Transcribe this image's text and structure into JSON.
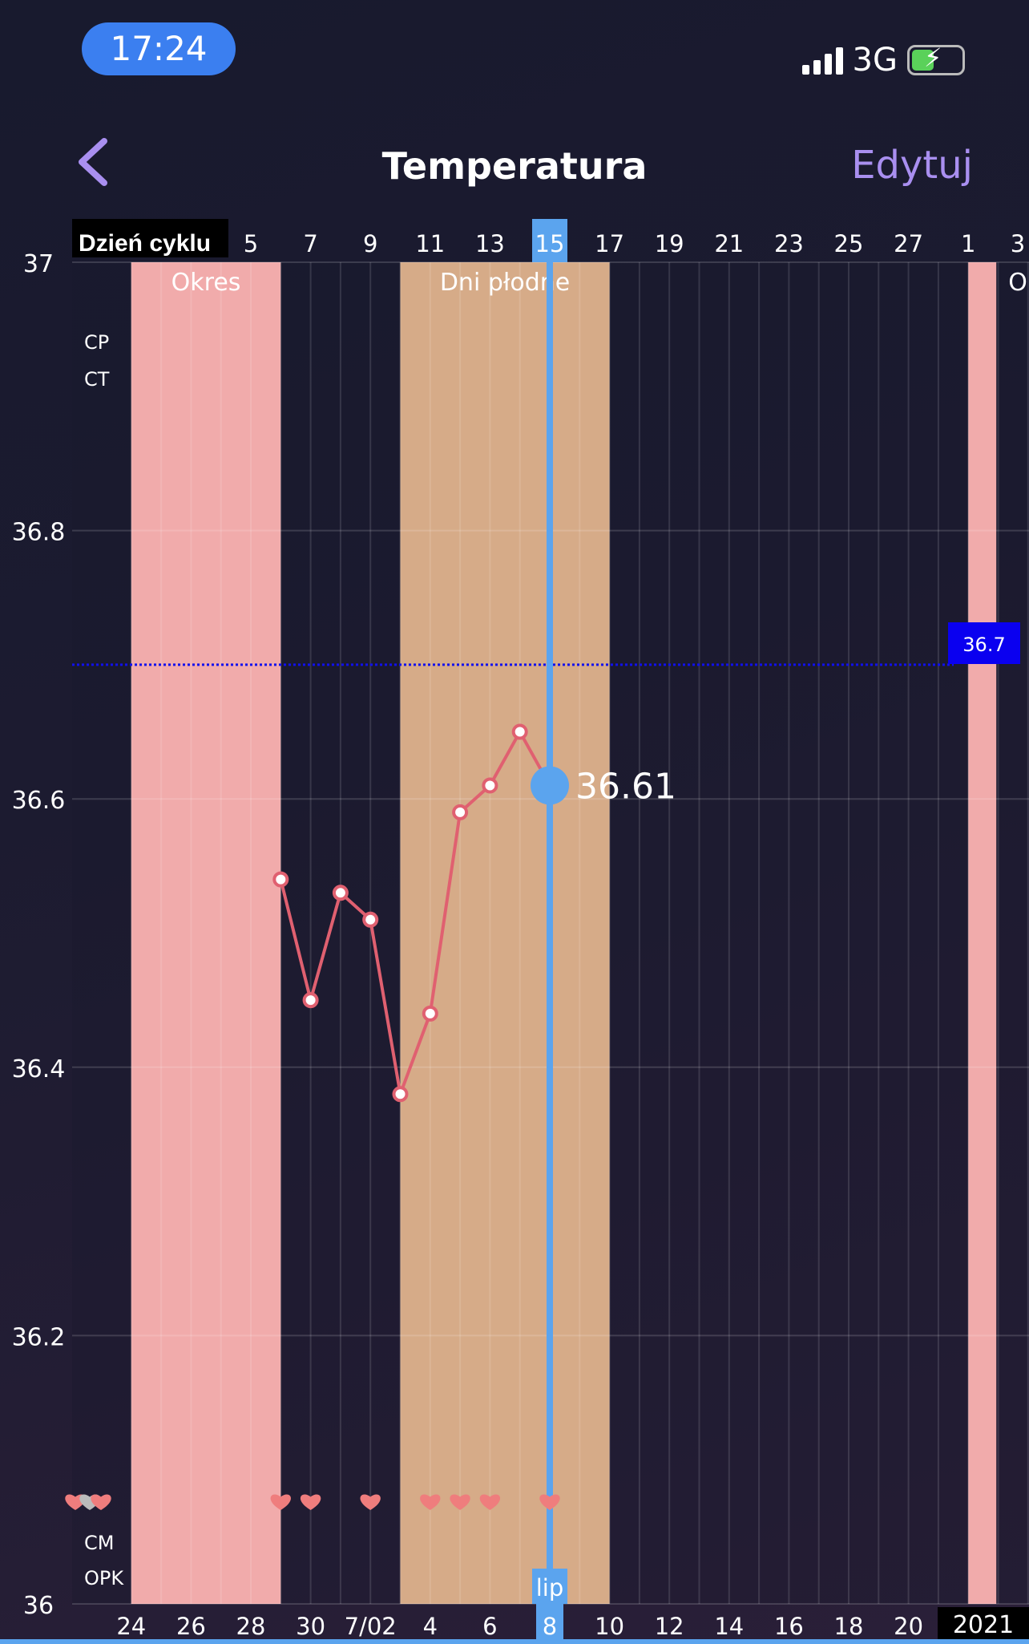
{
  "status_bar": {
    "time": "17:24",
    "network": "3G"
  },
  "header": {
    "title": "Temperatura",
    "edit_label": "Edytuj"
  },
  "chart_data": {
    "type": "line",
    "top_axis_label": "Dzień cyklu",
    "x_cycle_days": [
      1,
      2,
      3,
      4,
      5,
      6,
      7,
      8,
      9,
      10,
      11,
      12,
      13,
      14,
      15,
      16,
      17,
      18,
      19,
      20,
      21,
      22,
      23,
      24,
      25,
      26,
      27,
      28,
      29,
      30
    ],
    "top_tick_labels": [
      "5",
      "7",
      "9",
      "11",
      "13",
      "15",
      "17",
      "19",
      "21",
      "23",
      "25",
      "27",
      "1",
      "3"
    ],
    "top_tick_days": [
      5,
      7,
      9,
      11,
      13,
      15,
      17,
      19,
      21,
      23,
      25,
      27,
      29,
      31
    ],
    "bottom_tick_labels": [
      "24",
      "26",
      "28",
      "30",
      "7/02",
      "4",
      "6",
      "8",
      "10",
      "12",
      "14",
      "16",
      "18",
      "20"
    ],
    "bottom_tick_days": [
      1,
      3,
      5,
      7,
      9,
      11,
      13,
      15,
      17,
      19,
      21,
      23,
      25,
      27
    ],
    "year_label": "2021",
    "month_label": "lip",
    "y_ticks": [
      "37",
      "36.8",
      "36.6",
      "36.4",
      "36.2",
      "36"
    ],
    "ylim": [
      36,
      37
    ],
    "series": [
      {
        "days": [
          6,
          7,
          8,
          9,
          10,
          11,
          12,
          13,
          14,
          15
        ],
        "values": [
          36.54,
          36.45,
          36.53,
          36.51,
          36.38,
          36.44,
          36.59,
          36.61,
          36.65,
          36.61
        ]
      }
    ],
    "selected": {
      "day": 15,
      "value": "36.61"
    },
    "coverline": {
      "value": 36.7,
      "label": "36.7"
    },
    "bands": [
      {
        "label": "Okres",
        "from": 1,
        "to": 6,
        "color": "#f1abab"
      },
      {
        "label": "Dni płodne",
        "from": 10,
        "to": 17,
        "color": "#d6ab88"
      },
      {
        "label": "O",
        "from": 29,
        "to": 30,
        "color": "#f1abab"
      }
    ],
    "row_labels": [
      "CP",
      "CT",
      "CM",
      "OPK"
    ],
    "heart_days": [
      6,
      7,
      9,
      11,
      12,
      13,
      15
    ],
    "colors": {
      "line": "#e06070",
      "selected": "#5ba4ee",
      "coverline": "#1010ee"
    }
  }
}
